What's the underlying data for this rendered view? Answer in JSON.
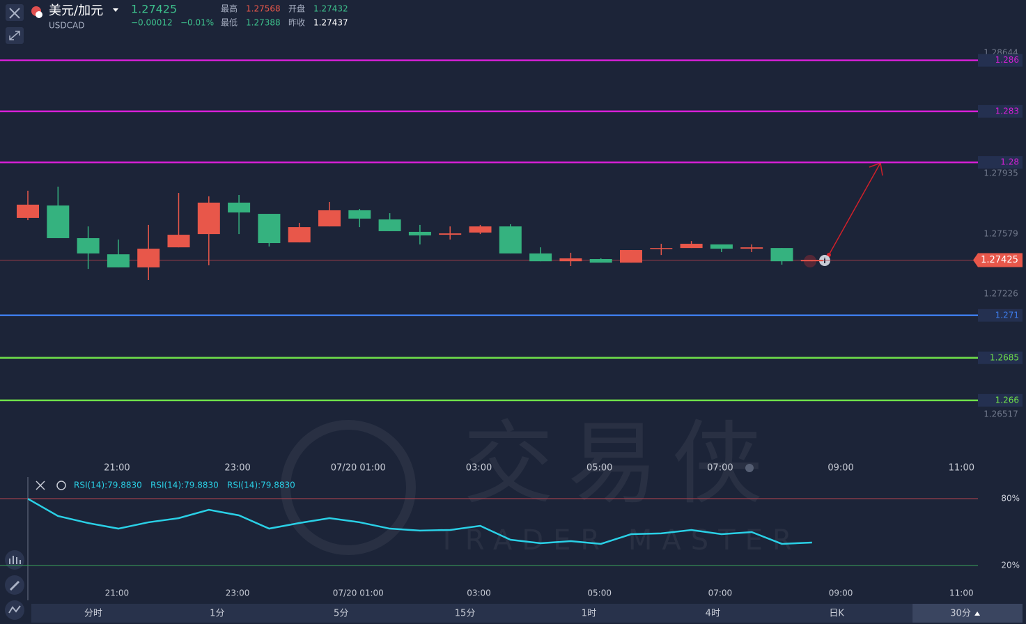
{
  "header": {
    "symbol": "美元/加元",
    "code": "USDCAD",
    "price": 1.27425,
    "change": "−0.00012",
    "change_pct": "−0.01%",
    "stats": [
      {
        "label": "最高",
        "value": "1.27568"
      },
      {
        "label": "开盘",
        "value": "1.27432"
      },
      {
        "label": "最低",
        "value": "1.27388"
      },
      {
        "label": "昨收",
        "value": "1.27437"
      }
    ]
  },
  "chart_data": [
    {
      "type": "candlestick",
      "categories": [
        null,
        null,
        null,
        "21:00",
        null,
        null,
        null,
        "23:00",
        null,
        null,
        null,
        "07/20 01:00",
        null,
        null,
        null,
        "03:00",
        null,
        null,
        null,
        "05:00",
        null,
        null,
        null,
        "07:00",
        null,
        null,
        null,
        "09:00",
        null,
        null,
        null,
        "11:00"
      ],
      "open": [
        1.27673,
        1.27746,
        1.27554,
        1.27459,
        1.27382,
        1.275,
        1.27578,
        1.27763,
        1.27697,
        1.27529,
        1.27623,
        1.27718,
        1.27664,
        1.27591,
        1.27574,
        1.27587,
        1.27623,
        1.27464,
        1.27418,
        1.27431,
        1.2741,
        1.27492,
        1.27496,
        1.27517,
        1.27492,
        1.27496,
        1.27418,
        null,
        null,
        null,
        null,
        null
      ],
      "high": [
        1.27833,
        1.27857,
        1.27623,
        1.27546,
        1.27632,
        1.2782,
        1.278,
        1.27808,
        1.27697,
        1.27644,
        1.27767,
        1.27726,
        1.27701,
        1.27632,
        1.27623,
        1.27632,
        1.27636,
        1.275,
        1.27468,
        1.27435,
        1.27484,
        1.27521,
        1.27537,
        1.27517,
        1.27517,
        1.27496,
        1.27425,
        null,
        null,
        null,
        null,
        null
      ],
      "low": [
        1.2766,
        1.27554,
        1.27373,
        1.27382,
        1.27308,
        1.275,
        1.27394,
        1.27578,
        1.27505,
        1.27529,
        1.27623,
        1.27619,
        1.27595,
        1.27517,
        1.27546,
        1.27578,
        1.27464,
        1.27418,
        1.2739,
        1.2741,
        1.2741,
        1.27455,
        1.27496,
        1.27472,
        1.27472,
        1.27398,
        1.27418,
        null,
        null,
        null,
        null,
        null
      ],
      "close": [
        1.27751,
        1.27554,
        1.27464,
        1.27382,
        1.27492,
        1.27574,
        1.27763,
        1.27705,
        1.27525,
        1.27619,
        1.27718,
        1.27669,
        1.27595,
        1.2757,
        1.27582,
        1.27623,
        1.27464,
        1.27418,
        1.27435,
        1.2741,
        1.27484,
        1.27496,
        1.27521,
        1.27492,
        1.275,
        1.27418,
        1.27425,
        null,
        null,
        null,
        null,
        null
      ],
      "up_color": "#e8574a",
      "down_color": "#35b27f",
      "ylim": [
        1.26251,
        1.28955
      ],
      "yticks": [
        1.26517,
        1.27226,
        1.27579,
        1.27935,
        1.28644
      ],
      "last_price": 1.27425,
      "levels": [
        {
          "value": 1.286,
          "color": "#d61fd6"
        },
        {
          "value": 1.283,
          "color": "#d61fd6"
        },
        {
          "value": 1.28,
          "color": "#d61fd6"
        },
        {
          "value": 1.271,
          "color": "#3d7be8"
        },
        {
          "value": 1.2685,
          "color": "#6fe04a"
        },
        {
          "value": 1.266,
          "color": "#6fe04a"
        }
      ]
    },
    {
      "type": "line",
      "series": [
        {
          "name": "RSI(14):79.8830",
          "color": "#2ad0e6",
          "values": [
            79.88,
            64.4,
            58.1,
            53.1,
            58.8,
            62.5,
            70,
            65,
            53.1,
            58.1,
            62.5,
            58.8,
            53.1,
            51.3,
            51.9,
            55.6,
            43.1,
            40,
            41.9,
            39.4,
            48.1,
            48.8,
            51.9,
            48.1,
            50,
            39.4,
            40.6,
            null,
            null,
            null,
            null,
            null
          ]
        }
      ],
      "legend_labels": [
        "RSI(14):79.8830",
        "RSI(14):79.8830",
        "RSI(14):79.8830"
      ],
      "ylim": [
        0,
        100
      ],
      "yticks": [
        {
          "value": 80,
          "label": "80%",
          "color": "#b8434f"
        },
        {
          "value": 20,
          "label": "20%",
          "color": "#3aa35a"
        }
      ]
    }
  ],
  "watermark": {
    "cn": "交易侠",
    "en": "TRADER MASTER"
  },
  "timeframes": [
    "分时",
    "1分",
    "5分",
    "15分",
    "1时",
    "4时",
    "日K",
    "30分"
  ],
  "selected_timeframe": 7
}
